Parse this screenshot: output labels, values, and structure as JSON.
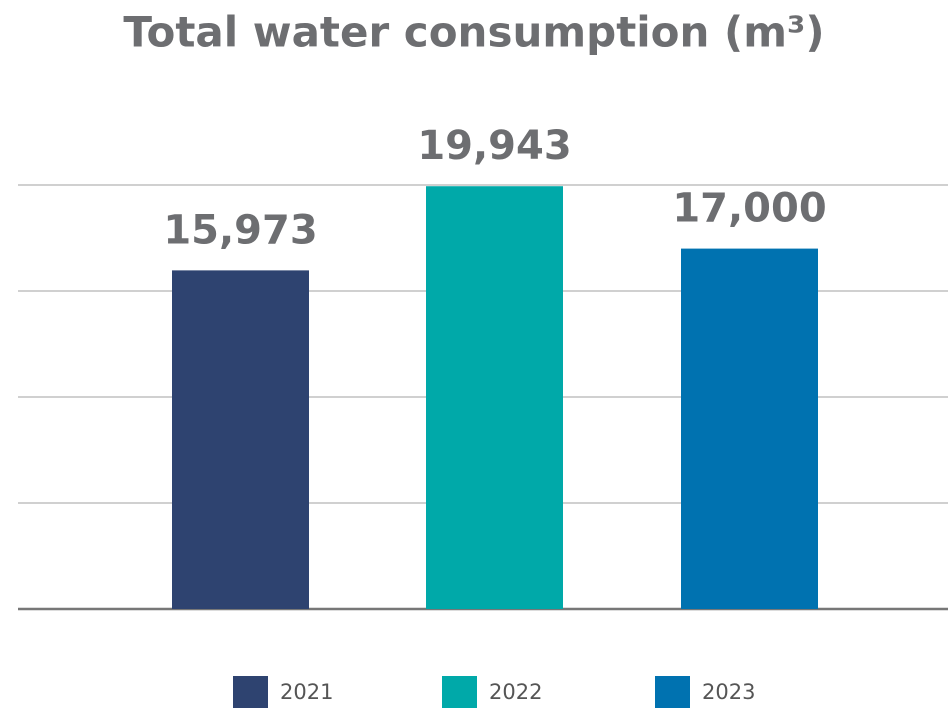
{
  "chart_data": {
    "type": "bar",
    "title": "Total water consumption (m³)",
    "categories": [
      "2021",
      "2022",
      "2023"
    ],
    "values": [
      15973,
      19943,
      17000
    ],
    "value_labels": [
      "15,973",
      "19,943",
      "17,000"
    ],
    "colors": [
      "#2e4370",
      "#00a9a9",
      "#0072b0"
    ],
    "ylim": [
      0,
      20000
    ],
    "yticks": [
      0,
      5000,
      10000,
      15000,
      20000
    ],
    "grid": true,
    "legend": "bottom"
  }
}
